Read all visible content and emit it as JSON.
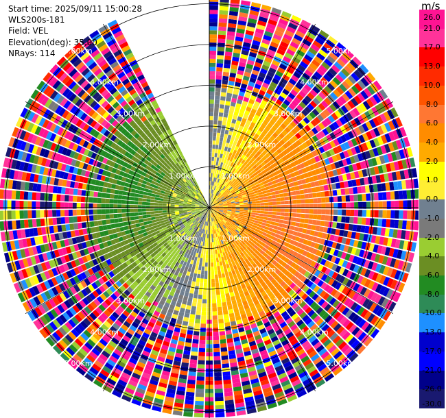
{
  "info": {
    "start_time": "Start time: 2025/09/11 15:00:28",
    "instrument": "WLS200s-181",
    "field": "Field: VEL",
    "elevation": "Elevation(deg): 35.00",
    "nrays": "NRays: 114"
  },
  "chart_data": {
    "type": "heatmap",
    "projection": "polar-ppi",
    "field": "VEL",
    "units": "m/s",
    "elevation_deg": 35.0,
    "n_rays": 114,
    "range_rings_km": [
      1.0,
      2.0,
      3.0,
      4.0,
      5.0
    ],
    "ring_label_text": [
      "1.00km",
      "2.00km",
      "3.00km",
      "4.00km",
      "5.00km"
    ],
    "max_range_km": 5.1,
    "gap_azimuth_deg": [
      334,
      360
    ],
    "colorbar": {
      "title": "m/s",
      "ticks": [
        "26.0",
        "21.0",
        "17.0",
        "13.0",
        "10.0",
        "8.0",
        "6.0",
        "4.0",
        "2.0",
        "1.0",
        "0.0",
        "-1.0",
        "-2.0",
        "-4.0",
        "-6.0",
        "-8.0",
        "-10.0",
        "-13.0",
        "-17.0",
        "-21.0",
        "-26.0",
        "-30.0"
      ],
      "colors": [
        "#ff1493",
        "#ff3399",
        "#ff0000",
        "#ff2a00",
        "#ff5500",
        "#ff7733",
        "#ff8c00",
        "#ffaa00",
        "#ffff00",
        "#ffee33",
        "#708090",
        "#7a7a7a",
        "#9acd32",
        "#6b8e23",
        "#228b22",
        "#2e8b57",
        "#1e90ff",
        "#0000cd",
        "#0000ff",
        "#00008b",
        "#191970"
      ]
    },
    "velocity_pattern": {
      "inner_range_km": 1.7,
      "outer_range_km": 3.0,
      "approaching_azimuth_deg": 280,
      "amplitude_ms": 6.5,
      "noise_beyond_km": 3.0
    }
  }
}
